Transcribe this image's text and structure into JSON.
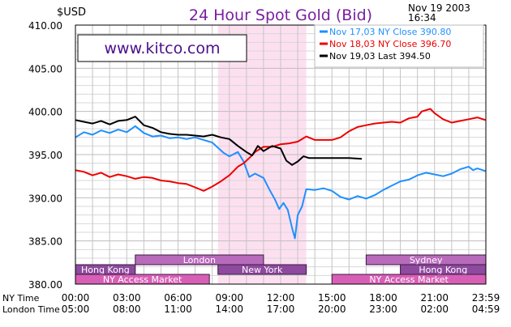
{
  "header": {
    "currency": "$USD",
    "title": "24 Hour Spot Gold (Bid)",
    "date": "Nov 19 2003",
    "time": "16:34",
    "watermark": "www.kitco.com"
  },
  "legend": [
    {
      "label": "Nov 17,03 NY Close 390.80",
      "color": "#1e90ff"
    },
    {
      "label": "Nov 18,03 NY Close 396.70",
      "color": "#ee0000"
    },
    {
      "label": "Nov 19,03 Last 394.50",
      "color": "#000000"
    }
  ],
  "sessions": [
    {
      "label": "London",
      "start": "03:30",
      "end": "11:00",
      "fill": "#b86bbb",
      "row": 1
    },
    {
      "label": "Sydney",
      "start": "17:00",
      "end": "24:00",
      "fill": "#b86bbb",
      "row": 1
    },
    {
      "label": "Hong Kong",
      "start": "0:00",
      "end": "03:30",
      "fill": "#8e4a9e",
      "row": 2
    },
    {
      "label": "New York",
      "start": "08:20",
      "end": "13:30",
      "fill": "#8e4a9e",
      "row": 2
    },
    {
      "label": "Hong Kong",
      "start": "19:00",
      "end": "24:00",
      "fill": "#8e4a9e",
      "row": 2
    },
    {
      "label": "NY Access Market",
      "start": "0:00",
      "end": "07:50",
      "fill": "#d85fb6",
      "row": 3
    },
    {
      "label": "NY Access Market",
      "start": "15:00",
      "end": "24:00",
      "fill": "#d85fb6",
      "row": 3
    }
  ],
  "axis_labels": {
    "ny_time": "NY Time",
    "london_time": "London Time"
  },
  "chart_data": {
    "type": "line",
    "title": "24 Hour Spot Gold (Bid)",
    "ylabel": "$USD",
    "ylim": [
      380,
      410
    ],
    "xlim": [
      "00:00",
      "23:59"
    ],
    "grid": true,
    "legend_position": "top-right",
    "y_ticks": [
      "410.00",
      "405.00",
      "400.00",
      "395.00",
      "390.00",
      "385.00",
      "380.00"
    ],
    "x_ticks_ny": [
      "00:00",
      "03:00",
      "06:00",
      "09:00",
      "12:00",
      "15:00",
      "18:00",
      "21:00",
      "23:59"
    ],
    "x_ticks_london": [
      "05:00",
      "08:00",
      "11:00",
      "14:00",
      "17:00",
      "20:00",
      "23:00",
      "02:00",
      "04:59"
    ],
    "shaded_region": {
      "start": "08:20",
      "end": "13:30",
      "color": "#fde0f0"
    },
    "series": [
      {
        "name": "Nov 17,03 NY Close 390.80",
        "color": "#1e90ff",
        "points": [
          [
            "00:00",
            397.0
          ],
          [
            "00:30",
            397.6
          ],
          [
            "01:00",
            397.3
          ],
          [
            "01:30",
            397.8
          ],
          [
            "02:00",
            397.5
          ],
          [
            "02:30",
            397.9
          ],
          [
            "03:00",
            397.6
          ],
          [
            "03:30",
            398.3
          ],
          [
            "04:00",
            397.5
          ],
          [
            "04:30",
            397.1
          ],
          [
            "05:00",
            397.2
          ],
          [
            "05:30",
            396.9
          ],
          [
            "06:00",
            397.0
          ],
          [
            "06:30",
            396.8
          ],
          [
            "07:00",
            397.0
          ],
          [
            "07:30",
            396.7
          ],
          [
            "08:00",
            396.4
          ],
          [
            "08:20",
            395.8
          ],
          [
            "08:40",
            395.2
          ],
          [
            "09:00",
            394.8
          ],
          [
            "09:30",
            395.3
          ],
          [
            "09:50",
            394.2
          ],
          [
            "10:10",
            392.4
          ],
          [
            "10:30",
            392.8
          ],
          [
            "11:00",
            392.3
          ],
          [
            "11:20",
            391.0
          ],
          [
            "11:40",
            389.8
          ],
          [
            "11:55",
            388.7
          ],
          [
            "12:10",
            389.4
          ],
          [
            "12:25",
            388.6
          ],
          [
            "12:40",
            386.5
          ],
          [
            "12:50",
            385.3
          ],
          [
            "13:00",
            388.0
          ],
          [
            "13:15",
            389.0
          ],
          [
            "13:30",
            391.0
          ],
          [
            "14:00",
            390.9
          ],
          [
            "14:30",
            391.1
          ],
          [
            "15:00",
            390.8
          ],
          [
            "15:30",
            390.1
          ],
          [
            "16:00",
            389.8
          ],
          [
            "16:30",
            390.2
          ],
          [
            "17:00",
            389.9
          ],
          [
            "17:30",
            390.3
          ],
          [
            "18:00",
            390.9
          ],
          [
            "18:30",
            391.4
          ],
          [
            "19:00",
            391.9
          ],
          [
            "19:30",
            392.1
          ],
          [
            "20:00",
            392.6
          ],
          [
            "20:30",
            392.9
          ],
          [
            "21:00",
            392.7
          ],
          [
            "21:30",
            392.5
          ],
          [
            "22:00",
            392.8
          ],
          [
            "22:30",
            393.3
          ],
          [
            "23:00",
            393.6
          ],
          [
            "23:15",
            393.2
          ],
          [
            "23:30",
            393.4
          ],
          [
            "23:59",
            393.1
          ]
        ]
      },
      {
        "name": "Nov 18,03 NY Close 396.70",
        "color": "#ee0000",
        "points": [
          [
            "00:00",
            393.2
          ],
          [
            "00:30",
            393.0
          ],
          [
            "01:00",
            392.6
          ],
          [
            "01:30",
            392.9
          ],
          [
            "02:00",
            392.4
          ],
          [
            "02:30",
            392.7
          ],
          [
            "03:00",
            392.5
          ],
          [
            "03:30",
            392.2
          ],
          [
            "04:00",
            392.4
          ],
          [
            "04:30",
            392.3
          ],
          [
            "05:00",
            392.0
          ],
          [
            "05:30",
            391.9
          ],
          [
            "06:00",
            391.7
          ],
          [
            "06:30",
            391.6
          ],
          [
            "07:00",
            391.2
          ],
          [
            "07:30",
            390.8
          ],
          [
            "08:00",
            391.3
          ],
          [
            "08:30",
            391.9
          ],
          [
            "09:00",
            392.6
          ],
          [
            "09:30",
            393.6
          ],
          [
            "09:50",
            394.0
          ],
          [
            "10:10",
            394.6
          ],
          [
            "10:30",
            395.3
          ],
          [
            "11:00",
            395.9
          ],
          [
            "11:30",
            395.9
          ],
          [
            "12:00",
            396.2
          ],
          [
            "12:30",
            396.3
          ],
          [
            "13:00",
            396.5
          ],
          [
            "13:30",
            397.1
          ],
          [
            "14:00",
            396.7
          ],
          [
            "14:30",
            396.7
          ],
          [
            "15:00",
            396.7
          ],
          [
            "15:30",
            397.0
          ],
          [
            "16:00",
            397.7
          ],
          [
            "16:30",
            398.2
          ],
          [
            "17:00",
            398.4
          ],
          [
            "17:30",
            398.6
          ],
          [
            "18:00",
            398.7
          ],
          [
            "18:30",
            398.8
          ],
          [
            "19:00",
            398.7
          ],
          [
            "19:30",
            399.2
          ],
          [
            "20:00",
            399.4
          ],
          [
            "20:15",
            400.0
          ],
          [
            "20:45",
            400.3
          ],
          [
            "21:00",
            399.8
          ],
          [
            "21:30",
            399.1
          ],
          [
            "22:00",
            398.7
          ],
          [
            "22:30",
            398.9
          ],
          [
            "23:00",
            399.1
          ],
          [
            "23:30",
            399.3
          ],
          [
            "23:59",
            399.0
          ]
        ]
      },
      {
        "name": "Nov 19,03 Last 394.50",
        "color": "#000000",
        "points": [
          [
            "00:00",
            399.0
          ],
          [
            "00:30",
            398.8
          ],
          [
            "01:00",
            398.6
          ],
          [
            "01:30",
            398.9
          ],
          [
            "02:00",
            398.5
          ],
          [
            "02:30",
            398.9
          ],
          [
            "03:00",
            399.0
          ],
          [
            "03:30",
            399.4
          ],
          [
            "04:00",
            398.4
          ],
          [
            "04:30",
            398.1
          ],
          [
            "05:00",
            397.6
          ],
          [
            "05:30",
            397.4
          ],
          [
            "06:00",
            397.3
          ],
          [
            "06:30",
            397.3
          ],
          [
            "07:00",
            397.2
          ],
          [
            "07:30",
            397.1
          ],
          [
            "08:00",
            397.3
          ],
          [
            "08:30",
            397.0
          ],
          [
            "09:00",
            396.8
          ],
          [
            "09:30",
            396.0
          ],
          [
            "10:00",
            395.3
          ],
          [
            "10:20",
            394.9
          ],
          [
            "10:40",
            396.0
          ],
          [
            "11:00",
            395.4
          ],
          [
            "11:30",
            396.0
          ],
          [
            "12:00",
            395.7
          ],
          [
            "12:20",
            394.3
          ],
          [
            "12:40",
            393.8
          ],
          [
            "13:00",
            394.2
          ],
          [
            "13:20",
            394.8
          ],
          [
            "13:40",
            394.6
          ],
          [
            "14:00",
            394.6
          ],
          [
            "15:00",
            394.6
          ],
          [
            "16:00",
            394.6
          ],
          [
            "16:45",
            394.5
          ]
        ]
      }
    ]
  }
}
